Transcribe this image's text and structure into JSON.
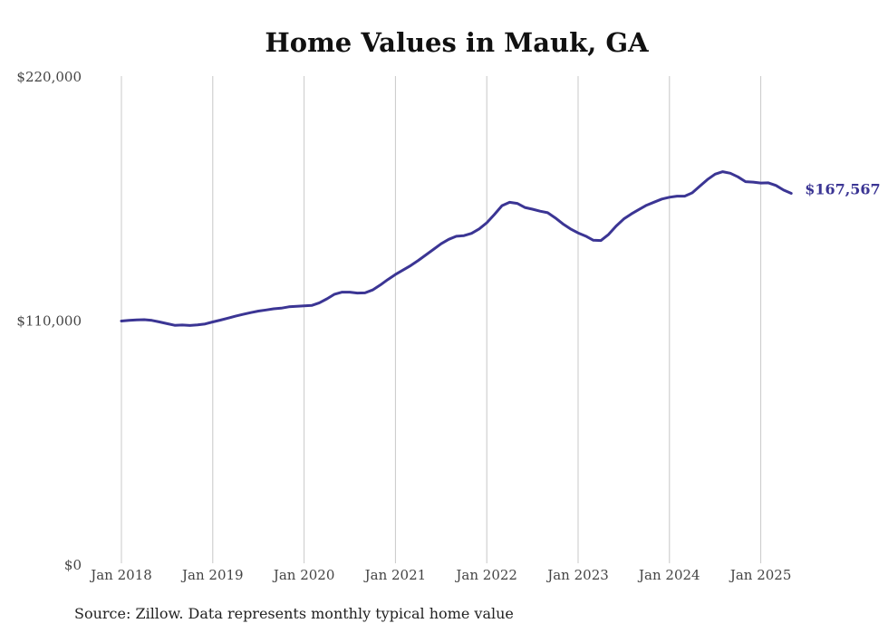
{
  "chart_data": {
    "type": "line",
    "title": "Home Values in Mauk, GA",
    "xlabel": "",
    "ylabel": "",
    "ylim": [
      0,
      220000
    ],
    "yticks": [
      "$0",
      "$110,000",
      "$220,000"
    ],
    "ytick_values": [
      0,
      110000,
      220000
    ],
    "xticks": [
      "Jan 2018",
      "Jan 2019",
      "Jan 2020",
      "Jan 2021",
      "Jan 2022",
      "Jan 2023",
      "Jan 2024",
      "Jan 2025"
    ],
    "xtick_values": [
      "2018-01",
      "2019-01",
      "2020-01",
      "2021-01",
      "2022-01",
      "2023-01",
      "2024-01",
      "2025-01"
    ],
    "grid": "vertical",
    "line_color": "#3b3594",
    "series": [
      {
        "x": [
          "2018-01",
          "2018-02",
          "2018-03",
          "2018-04",
          "2018-05",
          "2018-06",
          "2018-07",
          "2018-08",
          "2018-09",
          "2018-10",
          "2018-11",
          "2018-12",
          "2019-01",
          "2019-02",
          "2019-03",
          "2019-04",
          "2019-05",
          "2019-06",
          "2019-07",
          "2019-08",
          "2019-09",
          "2019-10",
          "2019-11",
          "2019-12",
          "2020-01",
          "2020-02",
          "2020-03",
          "2020-04",
          "2020-05",
          "2020-06",
          "2020-07",
          "2020-08",
          "2020-09",
          "2020-10",
          "2020-11",
          "2020-12",
          "2021-01",
          "2021-02",
          "2021-03",
          "2021-04",
          "2021-05",
          "2021-06",
          "2021-07",
          "2021-08",
          "2021-09",
          "2021-10",
          "2021-11",
          "2021-12",
          "2022-01",
          "2022-02",
          "2022-03",
          "2022-04",
          "2022-05",
          "2022-06",
          "2022-07",
          "2022-08",
          "2022-09",
          "2022-10",
          "2022-11",
          "2022-12",
          "2023-01",
          "2023-02",
          "2023-03",
          "2023-04",
          "2023-05",
          "2023-06",
          "2023-07",
          "2023-08",
          "2023-09",
          "2023-10",
          "2023-11",
          "2023-12",
          "2024-01",
          "2024-02",
          "2024-03",
          "2024-04",
          "2024-05",
          "2024-06",
          "2024-07",
          "2024-08",
          "2024-09",
          "2024-10",
          "2024-11",
          "2024-12",
          "2025-01",
          "2025-02",
          "2025-03",
          "2025-04",
          "2025-05"
        ],
        "values": [
          110000,
          110300,
          110500,
          110600,
          110300,
          109600,
          108800,
          108100,
          108200,
          108000,
          108300,
          108700,
          109600,
          110400,
          111300,
          112200,
          113000,
          113800,
          114500,
          115000,
          115500,
          115800,
          116400,
          116600,
          116800,
          117000,
          118200,
          120000,
          122100,
          123000,
          123000,
          122600,
          122700,
          124000,
          126200,
          128700,
          131000,
          133000,
          135000,
          137300,
          139800,
          142300,
          144800,
          146800,
          148200,
          148500,
          149500,
          151500,
          154300,
          158000,
          162000,
          163500,
          163000,
          161200,
          160400,
          159500,
          158800,
          156500,
          153800,
          151500,
          149700,
          148300,
          146400,
          146300,
          149000,
          152800,
          156000,
          158300,
          160300,
          162200,
          163600,
          165000,
          165800,
          166300,
          166300,
          167800,
          170800,
          173800,
          176200,
          177300,
          176600,
          175000,
          172800,
          172600,
          172200,
          172300,
          171100,
          169000,
          167567
        ]
      }
    ],
    "end_label": "$167,567"
  },
  "source": "Source: Zillow. Data represents monthly typical home value"
}
